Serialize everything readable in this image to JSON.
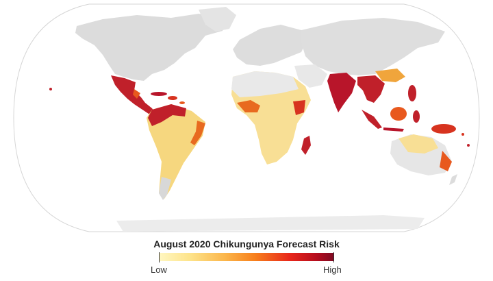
{
  "legend": {
    "title": "August 2020 Chikungunya Forecast Risk",
    "low_label": "Low",
    "high_label": "High",
    "gradient": [
      "#fff7c2",
      "#fde38a",
      "#fbb54a",
      "#f77f1c",
      "#e8261b",
      "#b50d1e",
      "#7d0a23"
    ]
  },
  "map": {
    "projection": "Robinson-like world map",
    "land_color": "#e3e3e3",
    "ocean_color": "#ffffff",
    "risk_regions": [
      {
        "region": "Mexico & Central America",
        "level": "high"
      },
      {
        "region": "Caribbean",
        "level": "medium-high"
      },
      {
        "region": "Northern South America",
        "level": "high"
      },
      {
        "region": "Brazil",
        "level": "medium"
      },
      {
        "region": "Sub-Saharan Africa",
        "level": "medium"
      },
      {
        "region": "Madagascar",
        "level": "high"
      },
      {
        "region": "India",
        "level": "high"
      },
      {
        "region": "Southeast Asia",
        "level": "high"
      },
      {
        "region": "Indonesia & Philippines",
        "level": "high"
      },
      {
        "region": "Northern Australia",
        "level": "low-medium"
      }
    ]
  }
}
